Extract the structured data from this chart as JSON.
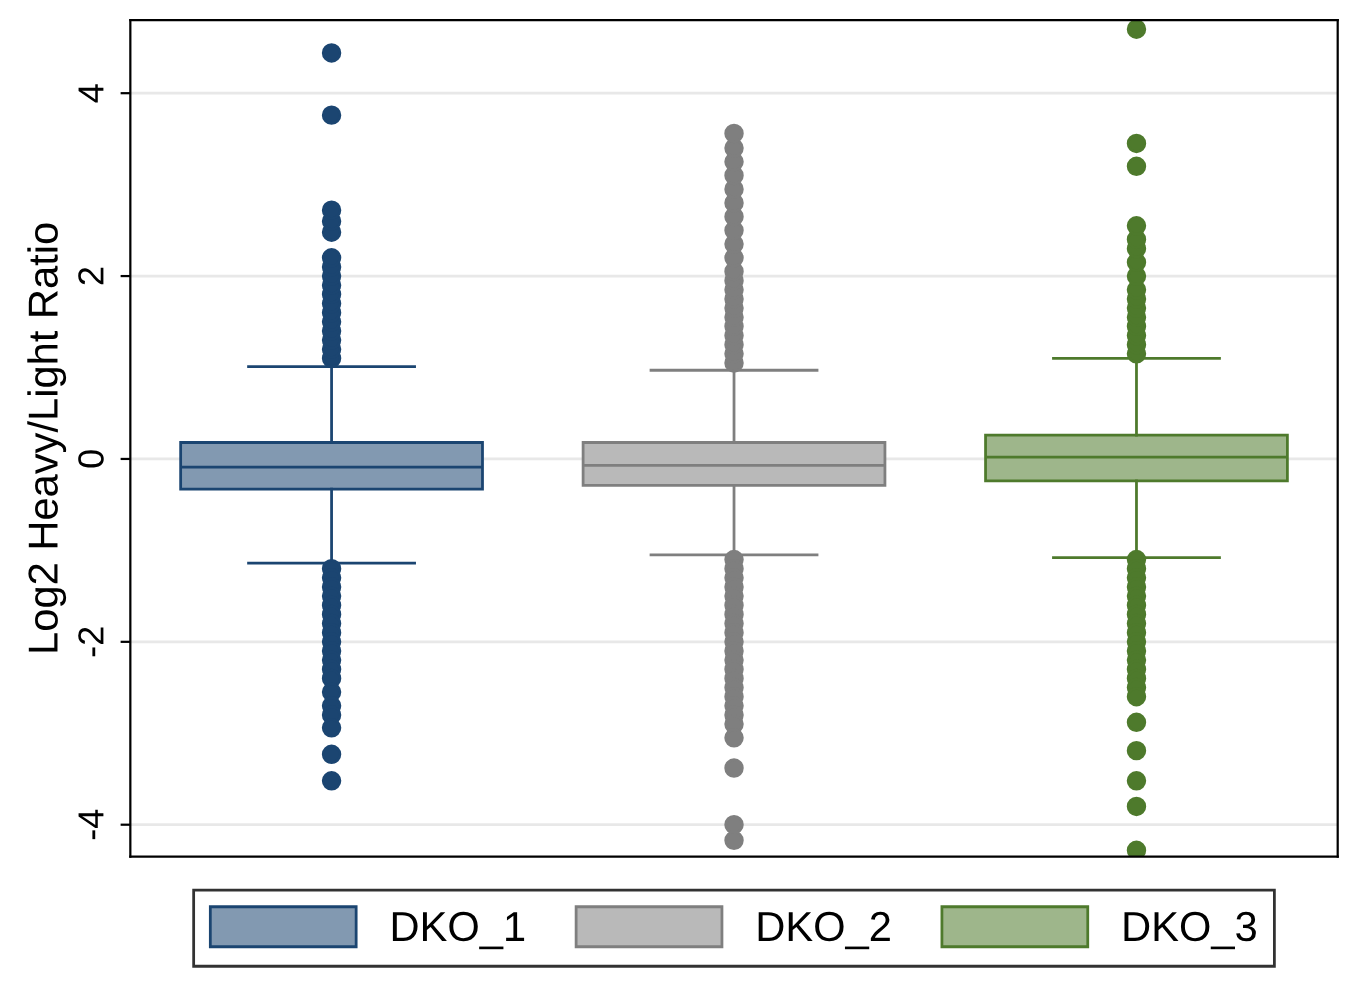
{
  "chart_data": {
    "type": "box",
    "ylabel": "Log2 Heavy/Light Ratio",
    "categories": [
      null
    ],
    "ylim": [
      -4.35,
      4.8
    ],
    "yticks": [
      -4,
      -2,
      0,
      2,
      4
    ],
    "grid": "y",
    "legend": "bottom",
    "tick_labels": "y",
    "series": [
      {
        "name": "DKO_1",
        "color": "#1b4571",
        "boxes": [
          {
            "low": -1.14,
            "q1": -0.33,
            "median": -0.09,
            "q3": 0.18,
            "high": 1.01,
            "outliers": [
              1.1,
              1.2,
              1.3,
              1.4,
              1.5,
              1.6,
              1.7,
              1.8,
              1.9,
              2.0,
              2.1,
              2.2,
              2.48,
              2.6,
              2.72,
              3.76,
              4.44,
              -1.2,
              -1.3,
              -1.4,
              -1.5,
              -1.6,
              -1.7,
              -1.8,
              -1.9,
              -2.0,
              -2.1,
              -2.2,
              -2.3,
              -2.4,
              -2.55,
              -2.7,
              -2.8,
              -2.94,
              -3.23,
              -3.52
            ]
          }
        ]
      },
      {
        "name": "DKO_2",
        "color": "#7f7f7f",
        "boxes": [
          {
            "low": -1.05,
            "q1": -0.29,
            "median": -0.07,
            "q3": 0.18,
            "high": 0.97,
            "outliers": [
              1.05,
              1.15,
              1.25,
              1.35,
              1.45,
              1.55,
              1.65,
              1.75,
              1.85,
              1.95,
              2.05,
              2.2,
              2.35,
              2.5,
              2.65,
              2.8,
              2.95,
              3.1,
              3.25,
              3.4,
              3.56,
              -1.1,
              -1.2,
              -1.3,
              -1.4,
              -1.5,
              -1.6,
              -1.7,
              -1.8,
              -1.9,
              -2.0,
              -2.1,
              -2.2,
              -2.3,
              -2.4,
              -2.5,
              -2.6,
              -2.7,
              -2.8,
              -2.9,
              -3.05,
              -3.38,
              -4.0,
              -4.17
            ]
          }
        ]
      },
      {
        "name": "DKO_3",
        "color": "#4e7a2c",
        "boxes": [
          {
            "low": -1.08,
            "q1": -0.24,
            "median": 0.02,
            "q3": 0.26,
            "high": 1.1,
            "outliers": [
              1.15,
              1.25,
              1.35,
              1.45,
              1.55,
              1.65,
              1.75,
              1.85,
              2.0,
              2.15,
              2.3,
              2.4,
              2.55,
              3.2,
              3.45,
              4.7,
              -1.1,
              -1.2,
              -1.3,
              -1.4,
              -1.5,
              -1.6,
              -1.7,
              -1.8,
              -1.9,
              -2.0,
              -2.1,
              -2.2,
              -2.3,
              -2.4,
              -2.5,
              -2.6,
              -2.88,
              -3.19,
              -3.52,
              -3.8,
              -4.28
            ]
          }
        ]
      }
    ]
  }
}
